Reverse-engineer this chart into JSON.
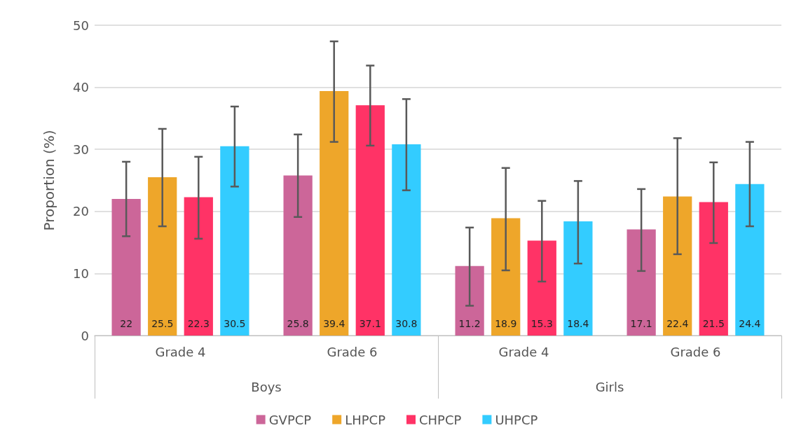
{
  "chart_data": {
    "type": "bar",
    "ylabel": "Proportion (%)",
    "categories": [
      "Grade 4",
      "Grade 6",
      "Grade 4",
      "Grade 6"
    ],
    "annotations": [
      "Boys",
      "Girls"
    ],
    "series": [
      {
        "name": "GVPCP",
        "color": "#cc6699",
        "values": [
          22,
          25.8,
          11.2,
          17.1
        ],
        "errors": [
          [
            16.0,
            28.0
          ],
          [
            19.1,
            32.4
          ],
          [
            4.8,
            17.4
          ],
          [
            10.4,
            23.6
          ]
        ]
      },
      {
        "name": "LHPCP",
        "color": "#eea62a",
        "values": [
          25.5,
          39.4,
          18.9,
          22.4
        ],
        "errors": [
          [
            17.6,
            33.3
          ],
          [
            31.2,
            47.4
          ],
          [
            10.5,
            27.0
          ],
          [
            13.1,
            31.8
          ]
        ]
      },
      {
        "name": "CHPCP",
        "color": "#ff3366",
        "values": [
          22.3,
          37.1,
          15.3,
          21.5
        ],
        "errors": [
          [
            15.6,
            28.8
          ],
          [
            30.6,
            43.5
          ],
          [
            8.7,
            21.7
          ],
          [
            14.9,
            27.9
          ]
        ]
      },
      {
        "name": "UHPCP",
        "color": "#33ccff",
        "values": [
          30.5,
          30.8,
          18.4,
          24.4
        ],
        "errors": [
          [
            24.0,
            36.9
          ],
          [
            23.4,
            38.1
          ],
          [
            11.6,
            24.9
          ],
          [
            17.6,
            31.2
          ]
        ]
      }
    ],
    "ylim": [
      0,
      50
    ],
    "yticks": [
      0,
      10,
      20,
      30,
      40,
      50
    ],
    "grid": "y",
    "legend": "bottom",
    "data_labels": true
  }
}
